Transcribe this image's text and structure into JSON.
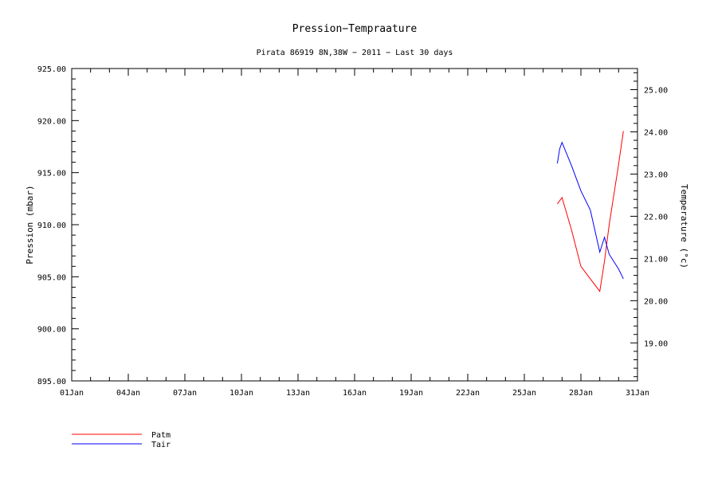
{
  "chart_data": {
    "type": "line",
    "title": "Pression−Tempraature",
    "subtitle": "Pirata 86919 8N,38W − 2011 − Last 30 days",
    "xlim": [
      "2011-01-01",
      "2011-01-31"
    ],
    "x_ticks": [
      "01Jan",
      "04Jan",
      "07Jan",
      "10Jan",
      "13Jan",
      "16Jan",
      "19Jan",
      "22Jan",
      "25Jan",
      "28Jan",
      "31Jan"
    ],
    "y_left": {
      "label": "Pression (mbar)",
      "ylim": [
        895,
        925
      ],
      "ticks": [
        "895.00",
        "900.00",
        "905.00",
        "910.00",
        "915.00",
        "920.00",
        "925.00"
      ]
    },
    "y_right": {
      "label": "Temperature (°c)",
      "ylim": [
        18.1,
        25.5
      ],
      "ticks": [
        "19.00",
        "20.00",
        "21.00",
        "22.00",
        "23.00",
        "24.00",
        "25.00"
      ]
    },
    "grid": false,
    "legend_position": "bottom-left",
    "series": [
      {
        "name": "Patm",
        "axis": "left",
        "color": "#ff0000",
        "x": [
          "2011-01-26 18:00",
          "2011-01-27 00:00",
          "2011-01-27 12:00",
          "2011-01-28 00:00",
          "2011-01-28 12:00",
          "2011-01-29 00:00",
          "2011-01-29 06:00",
          "2011-01-29 12:00",
          "2011-01-30 00:00",
          "2011-01-30 06:00"
        ],
        "values": [
          912.0,
          912.6,
          909.5,
          906.0,
          904.8,
          903.6,
          906.5,
          910.0,
          915.8,
          919.0
        ]
      },
      {
        "name": "Tair",
        "axis": "right",
        "color": "#0000ff",
        "x": [
          "2011-01-26 18:00",
          "2011-01-26 21:00",
          "2011-01-27 00:00",
          "2011-01-27 12:00",
          "2011-01-28 00:00",
          "2011-01-28 12:00",
          "2011-01-29 00:00",
          "2011-01-29 06:00",
          "2011-01-29 12:00",
          "2011-01-30 00:00",
          "2011-01-30 06:00"
        ],
        "values": [
          23.25,
          23.6,
          23.75,
          23.2,
          22.6,
          22.15,
          21.15,
          21.5,
          21.1,
          20.75,
          20.52
        ]
      }
    ]
  }
}
